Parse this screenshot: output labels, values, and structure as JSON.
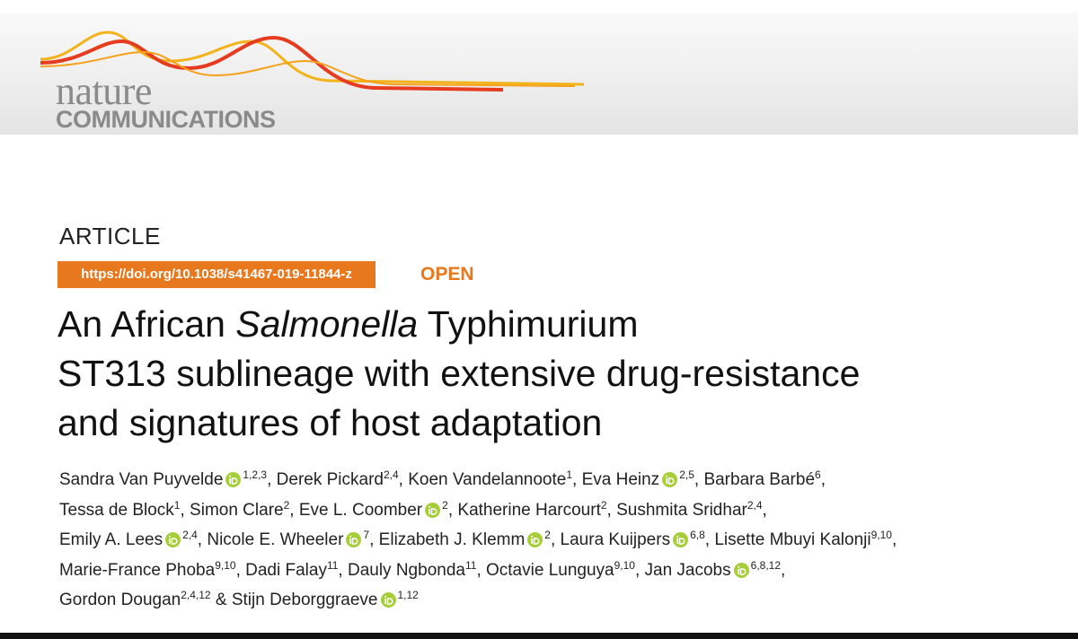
{
  "header": {
    "journal_line1": "nature",
    "journal_line2": "COMMUNICATIONS"
  },
  "article_type": "ARTICLE",
  "doi": "https://doi.org/10.1038/s41467-019-11844-z",
  "access": "OPEN",
  "title": {
    "lines": [
      [
        {
          "text": "An African",
          "italic": false
        },
        {
          "text": "Salmonella",
          "italic": true
        },
        {
          "text": "Typhimurium",
          "italic": false
        }
      ],
      [
        {
          "text": "ST313 sublineage with extensive drug-resistance",
          "italic": false
        }
      ],
      [
        {
          "text": "and signatures of host adaptation",
          "italic": false
        }
      ]
    ]
  },
  "author_separator": ",",
  "author_conjunction": "&",
  "authors": [
    [
      {
        "name": "Sandra Van Puyvelde",
        "orcid": true,
        "affiliations": "1,2,3"
      },
      {
        "name": "Derek Pickard",
        "orcid": false,
        "affiliations": "2,4"
      },
      {
        "name": "Koen Vandelannoote",
        "orcid": false,
        "affiliations": "1"
      },
      {
        "name": "Eva Heinz",
        "orcid": true,
        "affiliations": "2,5"
      },
      {
        "name": "Barbara Barbé",
        "orcid": false,
        "affiliations": "6"
      }
    ],
    [
      {
        "name": "Tessa de Block",
        "orcid": false,
        "affiliations": "1"
      },
      {
        "name": "Simon Clare",
        "orcid": false,
        "affiliations": "2"
      },
      {
        "name": "Eve L. Coomber",
        "orcid": true,
        "affiliations": "2"
      },
      {
        "name": "Katherine Harcourt",
        "orcid": false,
        "affiliations": "2"
      },
      {
        "name": "Sushmita Sridhar",
        "orcid": false,
        "affiliations": "2,4"
      }
    ],
    [
      {
        "name": "Emily A. Lees",
        "orcid": true,
        "affiliations": "2,4"
      },
      {
        "name": "Nicole E. Wheeler",
        "orcid": true,
        "affiliations": "7"
      },
      {
        "name": "Elizabeth J. Klemm",
        "orcid": true,
        "affiliations": "2"
      },
      {
        "name": "Laura Kuijpers",
        "orcid": true,
        "affiliations": "6,8"
      },
      {
        "name": "Lisette Mbuyi Kalonji",
        "orcid": false,
        "affiliations": "9,10"
      }
    ],
    [
      {
        "name": "Marie-France Phoba",
        "orcid": false,
        "affiliations": "9,10"
      },
      {
        "name": "Dadi Falay",
        "orcid": false,
        "affiliations": "11"
      },
      {
        "name": "Dauly Ngbonda",
        "orcid": false,
        "affiliations": "11"
      },
      {
        "name": "Octavie Lunguya",
        "orcid": false,
        "affiliations": "9,10"
      },
      {
        "name": "Jan Jacobs",
        "orcid": true,
        "affiliations": "6,8,12"
      }
    ],
    [
      {
        "name": "Gordon Dougan",
        "orcid": false,
        "affiliations": "2,4,12"
      },
      {
        "name": "Stijn Deborggraeve",
        "orcid": true,
        "affiliations": "1,12"
      }
    ]
  ]
}
